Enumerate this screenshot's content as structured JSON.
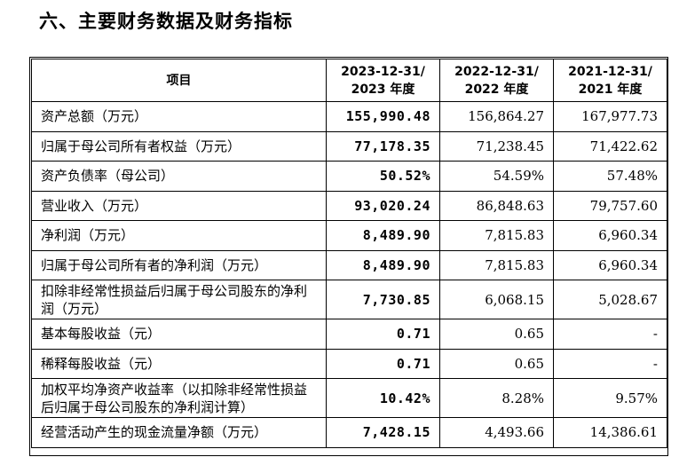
{
  "heading": "六、主要财务数据及财务指标",
  "table": {
    "headers": {
      "item": "项目",
      "c2023_line1": "2023-12-31/",
      "c2023_line2": "2023 年度",
      "c2022_line1": "2022-12-31/",
      "c2022_line2": "2022 年度",
      "c2021_line1": "2021-12-31/",
      "c2021_line2": "2021 年度"
    },
    "rows": [
      {
        "label": "资产总额（万元）",
        "v2023": "155,990.48",
        "v2022": "156,864.27",
        "v2021": "167,977.73"
      },
      {
        "label": "归属于母公司所有者权益（万元）",
        "v2023": "77,178.35",
        "v2022": "71,238.45",
        "v2021": "71,422.62"
      },
      {
        "label": "资产负债率（母公司）",
        "v2023": "50.52%",
        "v2022": "54.59%",
        "v2021": "57.48%"
      },
      {
        "label": "营业收入（万元）",
        "v2023": "93,020.24",
        "v2022": "86,848.63",
        "v2021": "79,757.60"
      },
      {
        "label": "净利润（万元）",
        "v2023": "8,489.90",
        "v2022": "7,815.83",
        "v2021": "6,960.34"
      },
      {
        "label": "归属于母公司所有者的净利润（万元）",
        "v2023": "8,489.90",
        "v2022": "7,815.83",
        "v2021": "6,960.34"
      },
      {
        "label": "扣除非经常性损益后归属于母公司股东的净利润（万元）",
        "v2023": "7,730.85",
        "v2022": "6,068.15",
        "v2021": "5,028.67"
      },
      {
        "label": "基本每股收益（元）",
        "v2023": "0.71",
        "v2022": "0.65",
        "v2021": "-"
      },
      {
        "label": "稀释每股收益（元）",
        "v2023": "0.71",
        "v2022": "0.65",
        "v2021": "-"
      },
      {
        "label": "加权平均净资产收益率（以扣除非经常性损益后归属于母公司股东的净利润计算）",
        "v2023": "10.42%",
        "v2022": "8.28%",
        "v2021": "9.57%"
      },
      {
        "label": "经营活动产生的现金流量净额（万元）",
        "v2023": "7,428.15",
        "v2022": "4,493.66",
        "v2021": "14,386.61"
      }
    ]
  }
}
